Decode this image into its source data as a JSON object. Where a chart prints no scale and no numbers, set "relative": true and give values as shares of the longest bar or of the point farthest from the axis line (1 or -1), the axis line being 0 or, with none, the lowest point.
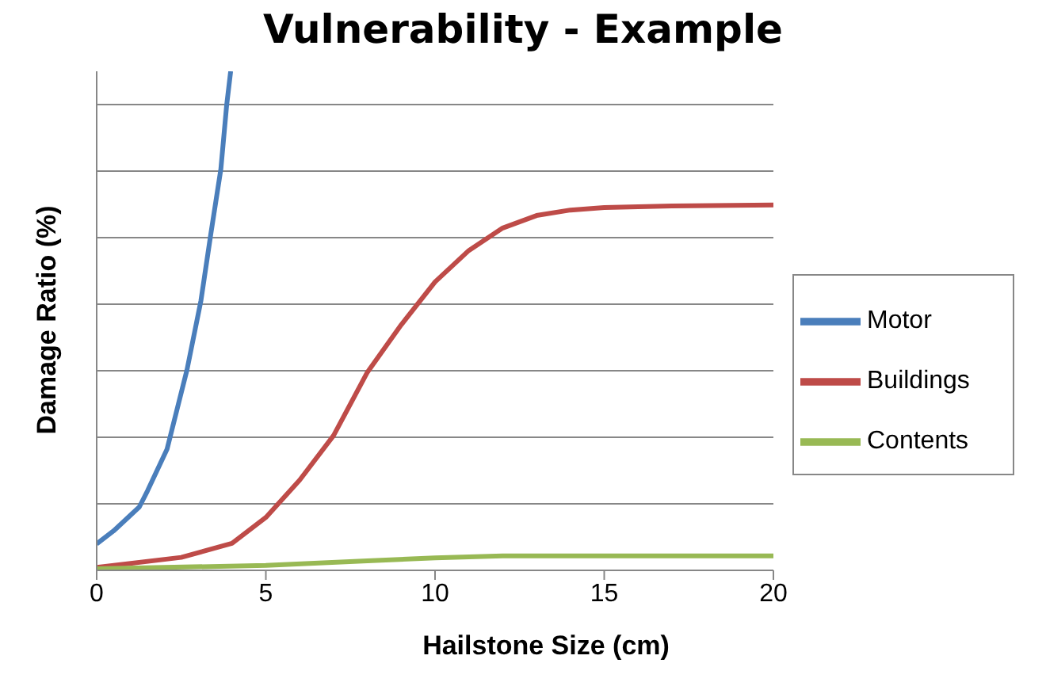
{
  "chart_data": {
    "type": "line",
    "title": "Vulnerability - Example",
    "xlabel": "Hailstone Size (cm)",
    "ylabel": "Damage Ratio (%)",
    "relative": true,
    "series": [
      {
        "name": "Motor",
        "color": "#4a7ebb",
        "x": [
          0,
          0.5,
          1.26,
          1.5,
          2.08,
          2.67,
          3.08,
          3.38,
          3.67,
          3.84,
          3.96
        ],
        "values": [
          0.053,
          0.079,
          0.127,
          0.159,
          0.243,
          0.402,
          0.54,
          0.677,
          0.804,
          0.931,
          1
        ]
      },
      {
        "name": "Buildings",
        "color": "#be4b48",
        "x": [
          0,
          2.5,
          4,
          5,
          6,
          7,
          8,
          9,
          10,
          11,
          12,
          13,
          14,
          15,
          17,
          20
        ],
        "values": [
          0.006,
          0.026,
          0.054,
          0.106,
          0.181,
          0.27,
          0.397,
          0.492,
          0.578,
          0.641,
          0.686,
          0.711,
          0.722,
          0.727,
          0.73,
          0.732
        ]
      },
      {
        "name": "Contents",
        "color": "#98b954",
        "x": [
          0,
          5,
          8,
          10,
          12,
          15,
          20
        ],
        "values": [
          0.003,
          0.01,
          0.019,
          0.025,
          0.029,
          0.029,
          0.029
        ]
      }
    ],
    "xlim": [
      0,
      20
    ],
    "xticks": [
      0,
      5,
      10,
      15,
      20
    ],
    "grid": "y",
    "legend": "right",
    "marker": "none",
    "line_style": "solid"
  }
}
